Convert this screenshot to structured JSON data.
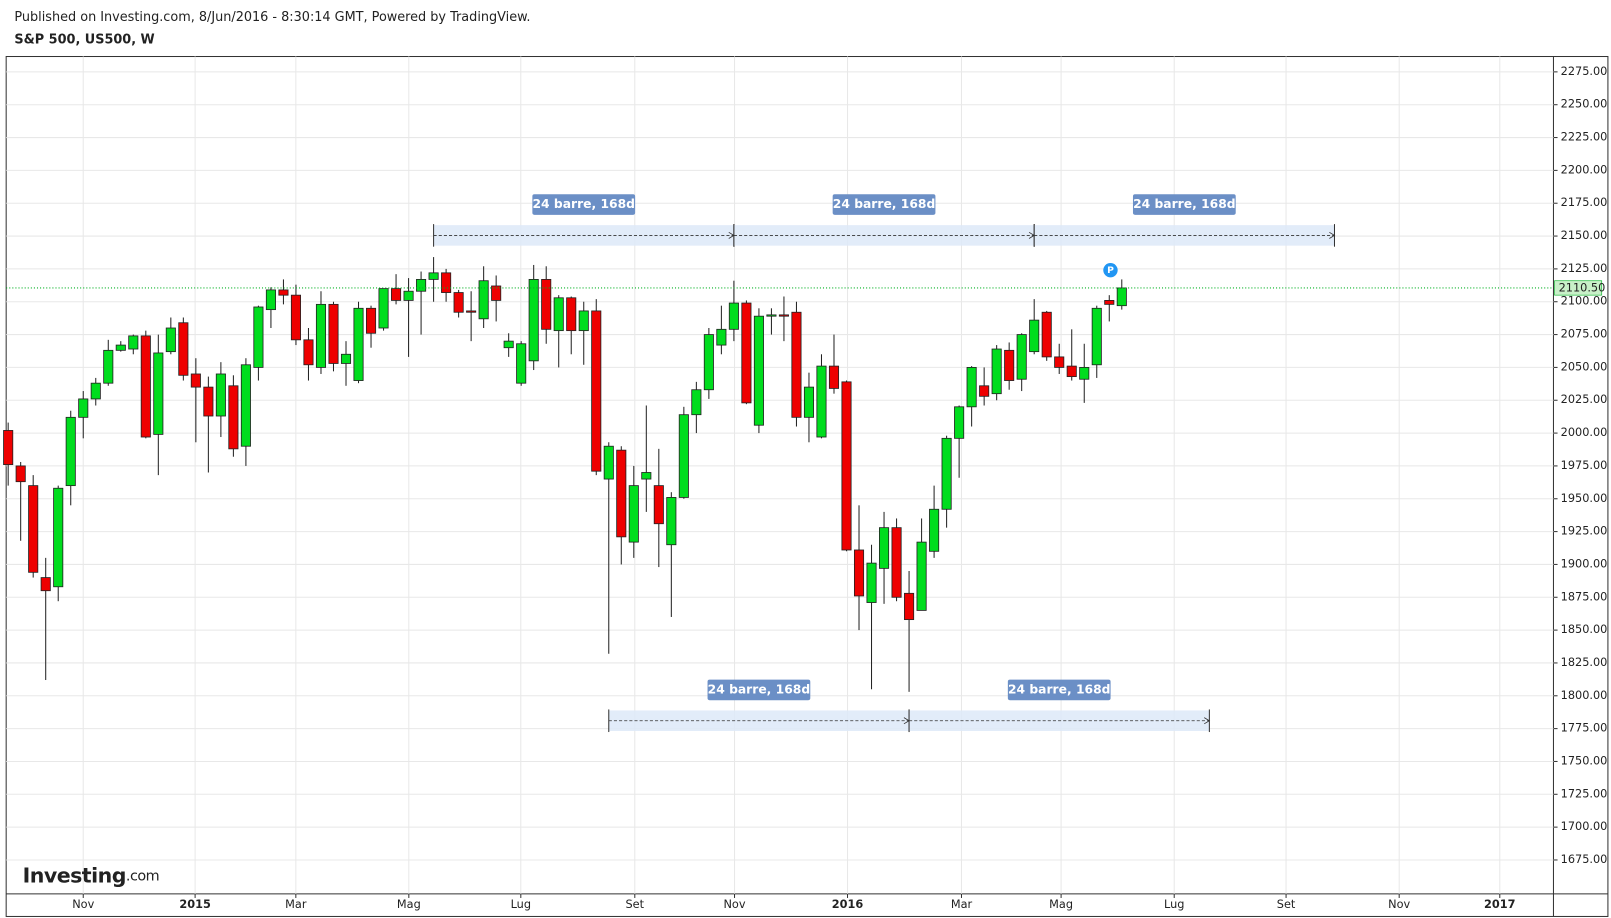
{
  "header": {
    "published": "Published on Investing.com, 8/Jun/2016 - 8:30:14 GMT, Powered by TradingView.",
    "symbol": "S&P 500, US500, W"
  },
  "logo": {
    "brand": "Investing",
    "suffix": ".com"
  },
  "chart_data": {
    "type": "candlestick",
    "x": [
      0,
      1,
      2,
      3,
      4,
      5,
      6,
      7,
      8,
      9,
      10,
      11,
      12,
      13,
      14,
      15,
      16,
      17,
      18,
      19,
      20,
      21,
      22,
      23,
      24,
      25,
      26,
      27,
      28,
      29,
      30,
      31,
      32,
      33,
      34,
      35,
      36,
      37,
      38,
      39,
      40,
      41,
      42,
      43,
      44,
      45,
      46,
      47,
      48,
      49,
      50,
      51,
      52,
      53,
      54,
      55,
      56,
      57,
      58,
      59,
      60,
      61,
      62,
      63,
      64,
      65,
      66,
      67,
      68,
      69,
      70,
      71,
      72,
      73,
      74,
      75,
      76,
      77,
      78,
      79,
      80,
      81,
      82,
      83,
      84,
      85,
      86,
      87,
      88,
      89
    ],
    "open": [
      2002,
      1975,
      1960,
      1890,
      1883,
      1960,
      2012,
      2026,
      2038,
      2063,
      2064,
      2074,
      1999,
      2062,
      2084,
      2045,
      2035,
      2013,
      2036,
      1990,
      2050,
      2094,
      2109,
      2105,
      2071,
      2050,
      2098,
      2053,
      2040,
      2095,
      2080,
      2110,
      2101,
      2108,
      2117,
      2122,
      2107,
      2093,
      2087,
      2112,
      2065,
      2038,
      2055,
      2117,
      2078,
      2103,
      2078,
      2093,
      1965,
      1987,
      1917,
      1965,
      1960,
      1915,
      1951,
      2014,
      2033,
      2067,
      2079,
      2099,
      2006,
      2089,
      2090,
      2092,
      2012,
      1997,
      2051,
      2039,
      1911,
      1871,
      1897,
      1928,
      1878,
      1865,
      1910,
      1942,
      1996,
      2020,
      2036,
      2030,
      2063,
      2041,
      2062,
      2092,
      2058,
      2051,
      2041,
      2052,
      2101,
      2097
    ],
    "high": [
      2008,
      1978,
      1968,
      1905,
      1960,
      2017,
      2032,
      2042,
      2071,
      2070,
      2075,
      2078,
      2075,
      2088,
      2088,
      2057,
      2043,
      2054,
      2044,
      2057,
      2097,
      2111,
      2117,
      2113,
      2080,
      2108,
      2100,
      2070,
      2100,
      2097,
      2110,
      2121,
      2118,
      2123,
      2134,
      2125,
      2109,
      2108,
      2127,
      2120,
      2076,
      2070,
      2128,
      2127,
      2105,
      2104,
      2100,
      2102,
      1993,
      1990,
      1975,
      2021,
      1988,
      1955,
      2020,
      2039,
      2080,
      2097,
      2116,
      2101,
      2095,
      2095,
      2104,
      2100,
      2046,
      2060,
      2075,
      2040,
      1945,
      1915,
      1940,
      1935,
      1895,
      1935,
      1960,
      1998,
      2021,
      2051,
      2050,
      2067,
      2069,
      2076,
      2102,
      2093,
      2068,
      2079,
      2068,
      2097,
      2105,
      2117
    ],
    "low": [
      1960,
      1918,
      1890,
      1812,
      1872,
      1945,
      1996,
      2021,
      2036,
      2062,
      2060,
      1996,
      1968,
      2060,
      2040,
      1993,
      1970,
      1997,
      1982,
      1975,
      2040,
      2080,
      2098,
      2067,
      2040,
      2045,
      2047,
      2036,
      2038,
      2065,
      2078,
      2098,
      2058,
      2075,
      2100,
      2100,
      2088,
      2070,
      2080,
      2085,
      2058,
      2036,
      2048,
      2068,
      2050,
      2060,
      2052,
      1968,
      1832,
      1900,
      1905,
      1940,
      1898,
      1860,
      1950,
      2000,
      2026,
      2060,
      2070,
      2022,
      2000,
      2075,
      2070,
      2005,
      1993,
      1996,
      2030,
      1910,
      1850,
      1805,
      1870,
      1872,
      1803,
      1865,
      1905,
      1928,
      1966,
      2005,
      2021,
      2025,
      2033,
      2032,
      2060,
      2055,
      2045,
      2040,
      2023,
      2042,
      2085,
      2094
    ],
    "close": [
      1976,
      1963,
      1894,
      1880,
      1958,
      2012,
      2026,
      2038,
      2063,
      2067,
      2074,
      1997,
      2061,
      2080,
      2044,
      2035,
      2013,
      2045,
      1988,
      2052,
      2096,
      2109,
      2105,
      2071,
      2052,
      2098,
      2053,
      2060,
      2095,
      2076,
      2110,
      2101,
      2108,
      2117,
      2122,
      2107,
      2092,
      2092,
      2116,
      2101,
      2070,
      2068,
      2117,
      2079,
      2103,
      2078,
      2093,
      1971,
      1990,
      1921,
      1960,
      1970,
      1931,
      1951,
      2014,
      2033,
      2075,
      2079,
      2099,
      2023,
      2089,
      2090,
      2089,
      2012,
      2035,
      2051,
      2034,
      1911,
      1876,
      1901,
      1928,
      1875,
      1858,
      1917,
      1942,
      1996,
      2020,
      2050,
      2028,
      2064,
      2040,
      2075,
      2086,
      2058,
      2050,
      2043,
      2050,
      2095,
      2098,
      2110.5
    ],
    "up_color": "#00dd1e",
    "down_color": "#ee0000",
    "xlim": [
      -0.16,
      123.5
    ],
    "xticks": [
      {
        "value": 6,
        "label": "Nov"
      },
      {
        "value": 14.94,
        "label": "2015"
      },
      {
        "value": 22.99,
        "label": "Mar"
      },
      {
        "value": 32.02,
        "label": "Mag"
      },
      {
        "value": 40.97,
        "label": "Lug"
      },
      {
        "value": 50.08,
        "label": "Set"
      },
      {
        "value": 58.05,
        "label": "Nov"
      },
      {
        "value": 67.08,
        "label": "2016"
      },
      {
        "value": 76.19,
        "label": "Mar"
      },
      {
        "value": 84.15,
        "label": "Mag"
      },
      {
        "value": 93.19,
        "label": "Lug"
      },
      {
        "value": 102.13,
        "label": "Set"
      },
      {
        "value": 111.17,
        "label": "Nov"
      },
      {
        "value": 119.21,
        "label": "2017"
      }
    ],
    "ylim": [
      1649.2,
      2286.7
    ],
    "yticks": [
      {
        "value": 1675,
        "label": "1675.00"
      },
      {
        "value": 1700,
        "label": "1700.00"
      },
      {
        "value": 1725,
        "label": "1725.00"
      },
      {
        "value": 1750,
        "label": "1750.00"
      },
      {
        "value": 1775,
        "label": "1775.00"
      },
      {
        "value": 1800,
        "label": "1800.00"
      },
      {
        "value": 1825,
        "label": "1825.00"
      },
      {
        "value": 1850,
        "label": "1850.00"
      },
      {
        "value": 1875,
        "label": "1875.00"
      },
      {
        "value": 1900,
        "label": "1900.00"
      },
      {
        "value": 1925,
        "label": "1925.00"
      },
      {
        "value": 1950,
        "label": "1950.00"
      },
      {
        "value": 1975,
        "label": "1975.00"
      },
      {
        "value": 2000,
        "label": "2000.00"
      },
      {
        "value": 2025,
        "label": "2025.00"
      },
      {
        "value": 2050,
        "label": "2050.00"
      },
      {
        "value": 2075,
        "label": "2075.00"
      },
      {
        "value": 2100,
        "label": "2100.00"
      },
      {
        "value": 2125,
        "label": "2125.00"
      },
      {
        "value": 2150,
        "label": "2150.00"
      },
      {
        "value": 2175,
        "label": "2175.00"
      },
      {
        "value": 2200,
        "label": "2200.00"
      },
      {
        "value": 2225,
        "label": "2225.00"
      },
      {
        "value": 2250,
        "label": "2250.00"
      },
      {
        "value": 2275,
        "label": "2275.00"
      }
    ],
    "grid": true,
    "last_price": {
      "value": 2110.5,
      "label": "2110.50"
    },
    "marker_label": "P",
    "ranges": [
      {
        "label": "24 barre, 168d",
        "x": [
          34,
          58
        ],
        "y": 2150.5
      },
      {
        "label": "24 barre, 168d",
        "x": [
          58,
          82
        ],
        "y": 2150.5
      },
      {
        "label": "24 barre, 168d",
        "x": [
          82,
          106
        ],
        "y": 2150.5
      },
      {
        "label": "24 barre, 168d",
        "x": [
          48,
          72
        ],
        "y": 1781
      },
      {
        "label": "24 barre, 168d",
        "x": [
          72,
          96
        ],
        "y": 1781
      }
    ]
  }
}
